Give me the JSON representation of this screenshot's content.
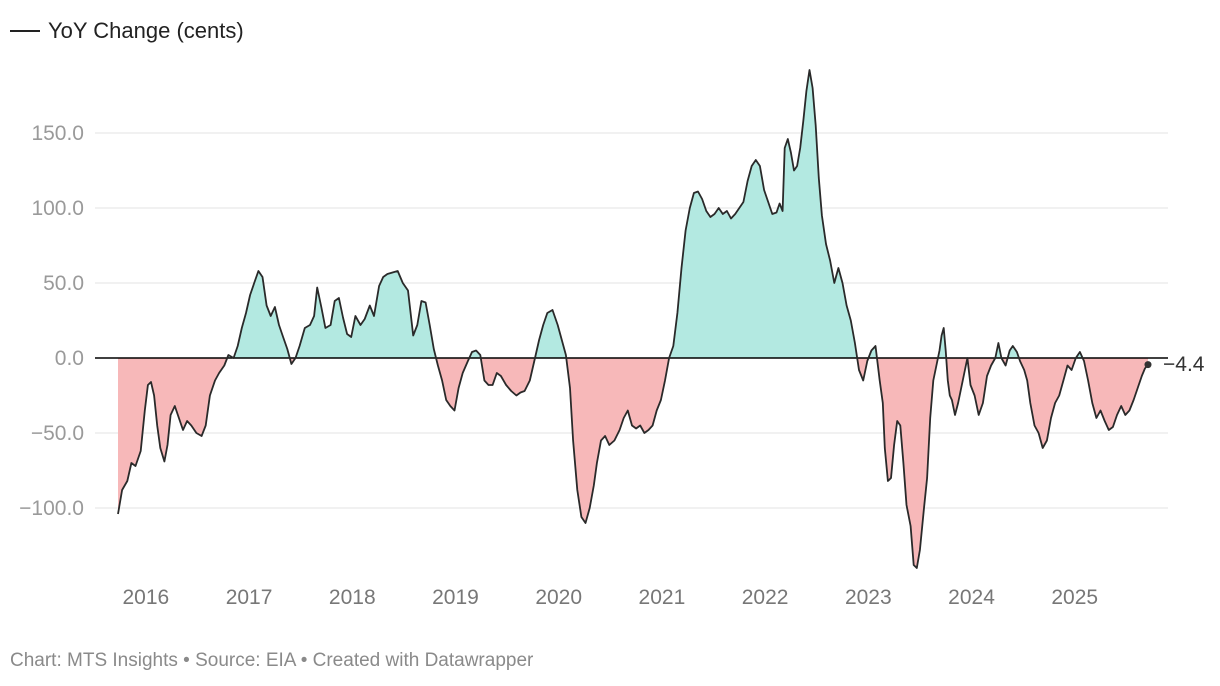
{
  "legend": {
    "label": "YoY Change (cents)",
    "color": "#222222"
  },
  "footer": {
    "text": "Chart: MTS Insights • Source: EIA • Created with Datawrapper"
  },
  "chart_data": {
    "type": "area",
    "title": "",
    "xlabel": "",
    "ylabel": "",
    "series_name": "YoY Change (cents)",
    "x_range": [
      2015.74,
      2025.72
    ],
    "ylim": [
      -150,
      195
    ],
    "y_ticks": [
      150,
      100,
      50,
      0,
      -50,
      -100
    ],
    "y_tick_labels": [
      "150.0",
      "100.0",
      "50.0",
      "0.0",
      "−50.0",
      "−100.0"
    ],
    "x_ticks": [
      2016,
      2017,
      2018,
      2019,
      2020,
      2021,
      2022,
      2023,
      2024,
      2025
    ],
    "x_tick_labels": [
      "2016",
      "2017",
      "2018",
      "2019",
      "2020",
      "2021",
      "2022",
      "2023",
      "2024",
      "2025"
    ],
    "end_label": "−4.4",
    "colors": {
      "positive": "#b3e9e1",
      "negative": "#f7b8b9",
      "line": "#2a2a2a",
      "zero": "#000000",
      "grid": "#e3e3e3"
    },
    "points": [
      [
        2015.74,
        -104
      ],
      [
        2015.78,
        -88
      ],
      [
        2015.83,
        -82
      ],
      [
        2015.87,
        -70
      ],
      [
        2015.91,
        -72
      ],
      [
        2015.96,
        -62
      ],
      [
        2016.0,
        -35
      ],
      [
        2016.03,
        -18
      ],
      [
        2016.06,
        -16
      ],
      [
        2016.09,
        -25
      ],
      [
        2016.12,
        -45
      ],
      [
        2016.15,
        -60
      ],
      [
        2016.19,
        -69
      ],
      [
        2016.22,
        -58
      ],
      [
        2016.25,
        -38
      ],
      [
        2016.29,
        -32
      ],
      [
        2016.33,
        -40
      ],
      [
        2016.37,
        -48
      ],
      [
        2016.41,
        -42
      ],
      [
        2016.45,
        -45
      ],
      [
        2016.5,
        -50
      ],
      [
        2016.55,
        -52
      ],
      [
        2016.59,
        -45
      ],
      [
        2016.63,
        -25
      ],
      [
        2016.68,
        -15
      ],
      [
        2016.72,
        -10
      ],
      [
        2016.77,
        -5
      ],
      [
        2016.81,
        2
      ],
      [
        2016.86,
        0
      ],
      [
        2016.9,
        8
      ],
      [
        2016.94,
        20
      ],
      [
        2016.98,
        30
      ],
      [
        2017.02,
        42
      ],
      [
        2017.06,
        50
      ],
      [
        2017.1,
        58
      ],
      [
        2017.14,
        54
      ],
      [
        2017.18,
        35
      ],
      [
        2017.22,
        28
      ],
      [
        2017.26,
        34
      ],
      [
        2017.3,
        22
      ],
      [
        2017.34,
        14
      ],
      [
        2017.38,
        6
      ],
      [
        2017.42,
        -4
      ],
      [
        2017.46,
        0
      ],
      [
        2017.5,
        8
      ],
      [
        2017.55,
        20
      ],
      [
        2017.6,
        22
      ],
      [
        2017.64,
        28
      ],
      [
        2017.67,
        47
      ],
      [
        2017.71,
        34
      ],
      [
        2017.75,
        20
      ],
      [
        2017.8,
        22
      ],
      [
        2017.84,
        38
      ],
      [
        2017.88,
        40
      ],
      [
        2017.92,
        27
      ],
      [
        2017.96,
        16
      ],
      [
        2018.0,
        14
      ],
      [
        2018.04,
        28
      ],
      [
        2018.09,
        22
      ],
      [
        2018.13,
        26
      ],
      [
        2018.18,
        35
      ],
      [
        2018.22,
        28
      ],
      [
        2018.27,
        48
      ],
      [
        2018.31,
        54
      ],
      [
        2018.35,
        56
      ],
      [
        2018.4,
        57
      ],
      [
        2018.45,
        58
      ],
      [
        2018.5,
        50
      ],
      [
        2018.55,
        45
      ],
      [
        2018.6,
        15
      ],
      [
        2018.64,
        22
      ],
      [
        2018.68,
        38
      ],
      [
        2018.72,
        37
      ],
      [
        2018.76,
        22
      ],
      [
        2018.8,
        6
      ],
      [
        2018.84,
        -5
      ],
      [
        2018.88,
        -15
      ],
      [
        2018.92,
        -28
      ],
      [
        2018.96,
        -32
      ],
      [
        2019.0,
        -35
      ],
      [
        2019.04,
        -20
      ],
      [
        2019.08,
        -10
      ],
      [
        2019.13,
        -2
      ],
      [
        2019.17,
        4
      ],
      [
        2019.21,
        5
      ],
      [
        2019.25,
        2
      ],
      [
        2019.29,
        -15
      ],
      [
        2019.33,
        -18
      ],
      [
        2019.37,
        -18
      ],
      [
        2019.41,
        -10
      ],
      [
        2019.45,
        -12
      ],
      [
        2019.5,
        -18
      ],
      [
        2019.55,
        -22
      ],
      [
        2019.6,
        -25
      ],
      [
        2019.64,
        -23
      ],
      [
        2019.68,
        -22
      ],
      [
        2019.73,
        -15
      ],
      [
        2019.78,
        0
      ],
      [
        2019.82,
        12
      ],
      [
        2019.86,
        22
      ],
      [
        2019.9,
        30
      ],
      [
        2019.95,
        32
      ],
      [
        2020.0,
        22
      ],
      [
        2020.04,
        12
      ],
      [
        2020.08,
        2
      ],
      [
        2020.12,
        -20
      ],
      [
        2020.15,
        -55
      ],
      [
        2020.19,
        -88
      ],
      [
        2020.23,
        -106
      ],
      [
        2020.27,
        -110
      ],
      [
        2020.31,
        -100
      ],
      [
        2020.35,
        -85
      ],
      [
        2020.38,
        -70
      ],
      [
        2020.42,
        -55
      ],
      [
        2020.46,
        -52
      ],
      [
        2020.5,
        -58
      ],
      [
        2020.55,
        -55
      ],
      [
        2020.6,
        -48
      ],
      [
        2020.64,
        -40
      ],
      [
        2020.68,
        -35
      ],
      [
        2020.72,
        -45
      ],
      [
        2020.76,
        -47
      ],
      [
        2020.8,
        -45
      ],
      [
        2020.84,
        -50
      ],
      [
        2020.88,
        -48
      ],
      [
        2020.92,
        -45
      ],
      [
        2020.96,
        -35
      ],
      [
        2021.0,
        -28
      ],
      [
        2021.04,
        -15
      ],
      [
        2021.08,
        0
      ],
      [
        2021.12,
        8
      ],
      [
        2021.16,
        30
      ],
      [
        2021.2,
        60
      ],
      [
        2021.24,
        85
      ],
      [
        2021.28,
        100
      ],
      [
        2021.32,
        110
      ],
      [
        2021.36,
        111
      ],
      [
        2021.4,
        106
      ],
      [
        2021.44,
        98
      ],
      [
        2021.48,
        94
      ],
      [
        2021.52,
        96
      ],
      [
        2021.56,
        100
      ],
      [
        2021.6,
        96
      ],
      [
        2021.64,
        98
      ],
      [
        2021.68,
        93
      ],
      [
        2021.72,
        96
      ],
      [
        2021.76,
        100
      ],
      [
        2021.8,
        104
      ],
      [
        2021.84,
        118
      ],
      [
        2021.88,
        128
      ],
      [
        2021.92,
        132
      ],
      [
        2021.96,
        128
      ],
      [
        2022.0,
        112
      ],
      [
        2022.04,
        104
      ],
      [
        2022.08,
        96
      ],
      [
        2022.12,
        97
      ],
      [
        2022.15,
        103
      ],
      [
        2022.18,
        98
      ],
      [
        2022.2,
        140
      ],
      [
        2022.23,
        146
      ],
      [
        2022.26,
        137
      ],
      [
        2022.29,
        125
      ],
      [
        2022.32,
        128
      ],
      [
        2022.35,
        140
      ],
      [
        2022.38,
        158
      ],
      [
        2022.41,
        178
      ],
      [
        2022.44,
        192
      ],
      [
        2022.47,
        180
      ],
      [
        2022.5,
        155
      ],
      [
        2022.53,
        120
      ],
      [
        2022.56,
        95
      ],
      [
        2022.6,
        76
      ],
      [
        2022.64,
        65
      ],
      [
        2022.68,
        50
      ],
      [
        2022.72,
        60
      ],
      [
        2022.76,
        50
      ],
      [
        2022.8,
        35
      ],
      [
        2022.84,
        25
      ],
      [
        2022.88,
        10
      ],
      [
        2022.92,
        -8
      ],
      [
        2022.96,
        -15
      ],
      [
        2023.0,
        -2
      ],
      [
        2023.04,
        5
      ],
      [
        2023.08,
        8
      ],
      [
        2023.12,
        -15
      ],
      [
        2023.15,
        -30
      ],
      [
        2023.17,
        -60
      ],
      [
        2023.2,
        -82
      ],
      [
        2023.23,
        -80
      ],
      [
        2023.26,
        -58
      ],
      [
        2023.29,
        -42
      ],
      [
        2023.32,
        -45
      ],
      [
        2023.35,
        -70
      ],
      [
        2023.38,
        -98
      ],
      [
        2023.42,
        -112
      ],
      [
        2023.45,
        -138
      ],
      [
        2023.48,
        -140
      ],
      [
        2023.51,
        -128
      ],
      [
        2023.55,
        -100
      ],
      [
        2023.58,
        -80
      ],
      [
        2023.61,
        -40
      ],
      [
        2023.64,
        -15
      ],
      [
        2023.67,
        -5
      ],
      [
        2023.7,
        5
      ],
      [
        2023.72,
        15
      ],
      [
        2023.74,
        20
      ],
      [
        2023.76,
        5
      ],
      [
        2023.78,
        -15
      ],
      [
        2023.8,
        -25
      ],
      [
        2023.82,
        -28
      ],
      [
        2023.85,
        -38
      ],
      [
        2023.88,
        -30
      ],
      [
        2023.91,
        -20
      ],
      [
        2023.94,
        -10
      ],
      [
        2023.97,
        0
      ],
      [
        2024.0,
        -18
      ],
      [
        2024.04,
        -25
      ],
      [
        2024.08,
        -38
      ],
      [
        2024.12,
        -30
      ],
      [
        2024.16,
        -12
      ],
      [
        2024.2,
        -5
      ],
      [
        2024.24,
        0
      ],
      [
        2024.27,
        10
      ],
      [
        2024.3,
        0
      ],
      [
        2024.34,
        -5
      ],
      [
        2024.38,
        5
      ],
      [
        2024.41,
        8
      ],
      [
        2024.45,
        4
      ],
      [
        2024.48,
        -2
      ],
      [
        2024.52,
        -8
      ],
      [
        2024.55,
        -15
      ],
      [
        2024.58,
        -30
      ],
      [
        2024.62,
        -45
      ],
      [
        2024.66,
        -50
      ],
      [
        2024.7,
        -60
      ],
      [
        2024.74,
        -55
      ],
      [
        2024.78,
        -40
      ],
      [
        2024.82,
        -30
      ],
      [
        2024.86,
        -25
      ],
      [
        2024.9,
        -15
      ],
      [
        2024.94,
        -5
      ],
      [
        2024.98,
        -8
      ],
      [
        2025.02,
        0
      ],
      [
        2025.06,
        4
      ],
      [
        2025.1,
        -2
      ],
      [
        2025.14,
        -15
      ],
      [
        2025.18,
        -30
      ],
      [
        2025.22,
        -40
      ],
      [
        2025.26,
        -35
      ],
      [
        2025.3,
        -42
      ],
      [
        2025.34,
        -48
      ],
      [
        2025.38,
        -46
      ],
      [
        2025.42,
        -38
      ],
      [
        2025.46,
        -32
      ],
      [
        2025.5,
        -38
      ],
      [
        2025.54,
        -35
      ],
      [
        2025.58,
        -28
      ],
      [
        2025.62,
        -20
      ],
      [
        2025.66,
        -12
      ],
      [
        2025.69,
        -7
      ],
      [
        2025.72,
        -4.4
      ]
    ]
  }
}
